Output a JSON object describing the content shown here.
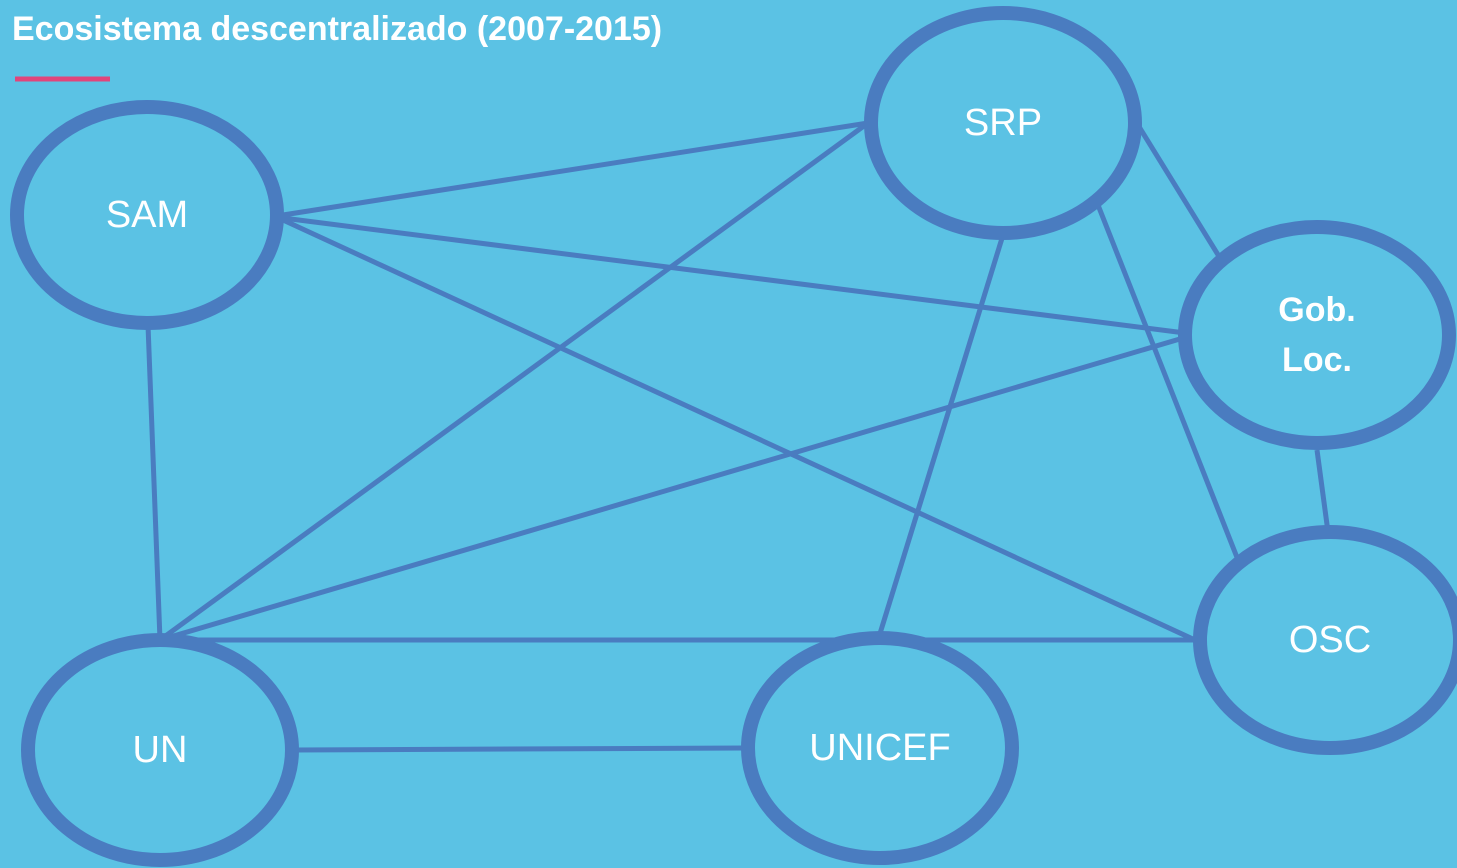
{
  "header": {
    "title": "Ecosistema descentralizado (2007-2015)"
  },
  "nodes": [
    {
      "label": [
        "SAM"
      ]
    },
    {
      "label": [
        "SRP"
      ]
    },
    {
      "label": [
        "Gob.",
        "Loc."
      ]
    },
    {
      "label": [
        "OSC"
      ]
    },
    {
      "label": [
        "UN"
      ]
    },
    {
      "label": [
        "UNICEF"
      ]
    }
  ]
}
